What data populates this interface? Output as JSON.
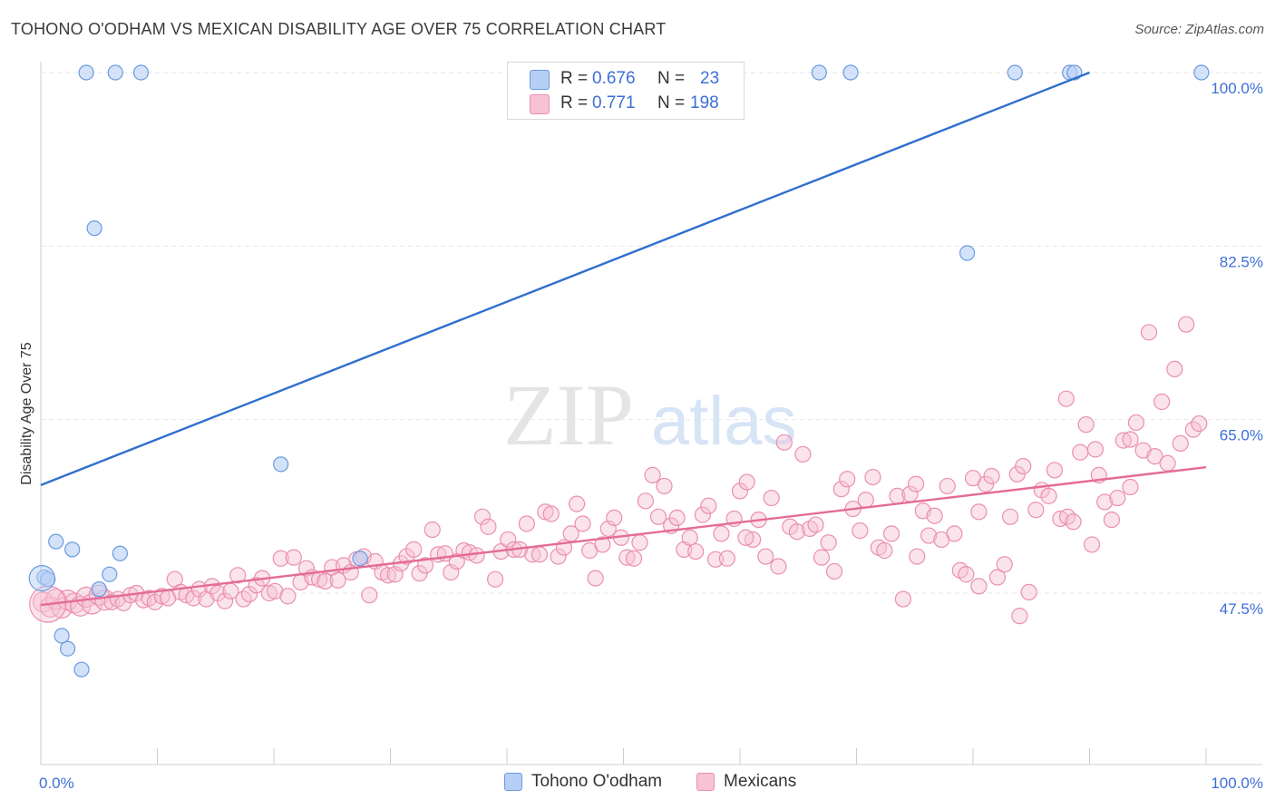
{
  "title": "TOHONO O'ODHAM VS MEXICAN DISABILITY AGE OVER 75 CORRELATION CHART",
  "source": "Source: ZipAtlas.com",
  "watermark": "ZIPatlas",
  "colors": {
    "blue_fill": "#b7cff5",
    "blue_stroke": "#6a9ae0",
    "blue_line": "#2f6fce",
    "pink_fill": "#f7c2d3",
    "pink_stroke": "#ea8fb0",
    "pink_line": "#e46b97",
    "tick_label": "#3d6fd6",
    "grid": "#e6e6e6"
  },
  "legend_top": [
    {
      "r_label": "R =",
      "r_value": "0.676",
      "n_label": "N =",
      "n_value": "23"
    },
    {
      "r_label": "R =",
      "r_value": "0.771",
      "n_label": "N =",
      "n_value": "198"
    }
  ],
  "legend_bottom": [
    "Tohono O'odham",
    "Mexicans"
  ],
  "chart_data": {
    "type": "scatter",
    "title": "TOHONO O'ODHAM VS MEXICAN DISABILITY AGE OVER 75 CORRELATION CHART",
    "xlabel": "",
    "ylabel": "Disability Age Over 75",
    "xlim": [
      0,
      100
    ],
    "ylim": [
      32.5,
      102
    ],
    "x_tick_labels": [
      "0.0%",
      "100.0%"
    ],
    "y_ticks": [
      47.5,
      65.0,
      82.5,
      100.0
    ],
    "y_tick_labels": [
      "47.5%",
      "65.0%",
      "82.5%",
      "100.0%"
    ],
    "grid": "horizontal dashed",
    "legend_placement": "top-center and bottom-center",
    "series": [
      {
        "name": "Tohono O'odham",
        "r": 0.676,
        "n": 23,
        "trend": [
          [
            0,
            58.4
          ],
          [
            90,
            100.0
          ]
        ],
        "points": [
          [
            3.9,
            100.0
          ],
          [
            6.4,
            100.0
          ],
          [
            8.6,
            100.0
          ],
          [
            66.8,
            100.0
          ],
          [
            69.5,
            100.0
          ],
          [
            83.6,
            100.0
          ],
          [
            88.3,
            100.0
          ],
          [
            88.7,
            100.0
          ],
          [
            99.6,
            100.0
          ],
          [
            4.6,
            84.3
          ],
          [
            79.5,
            81.8
          ],
          [
            20.6,
            60.5
          ],
          [
            1.3,
            52.7
          ],
          [
            2.7,
            51.9
          ],
          [
            6.8,
            51.5
          ],
          [
            27.4,
            51.0
          ],
          [
            0.3,
            49.1
          ],
          [
            0.6,
            48.9
          ],
          [
            5.9,
            49.4
          ],
          [
            5.0,
            47.9
          ],
          [
            1.8,
            43.2
          ],
          [
            2.3,
            41.9
          ],
          [
            3.5,
            39.8
          ]
        ]
      },
      {
        "name": "Mexicans",
        "r": 0.771,
        "n": 198,
        "trend": [
          [
            0,
            46.3
          ],
          [
            100,
            60.2
          ]
        ],
        "points": [
          [
            0.2,
            46.6
          ],
          [
            0.8,
            46.1
          ],
          [
            1.3,
            46.9
          ],
          [
            1.8,
            46.0
          ],
          [
            2.3,
            46.8
          ],
          [
            2.9,
            46.5
          ],
          [
            3.4,
            46.2
          ],
          [
            3.9,
            47.1
          ],
          [
            4.4,
            46.4
          ],
          [
            5.0,
            47.3
          ],
          [
            5.5,
            46.8
          ],
          [
            6.1,
            46.6
          ],
          [
            6.6,
            46.9
          ],
          [
            7.1,
            46.5
          ],
          [
            7.7,
            47.3
          ],
          [
            8.2,
            47.5
          ],
          [
            8.8,
            46.8
          ],
          [
            9.3,
            47.0
          ],
          [
            9.8,
            46.6
          ],
          [
            10.4,
            47.2
          ],
          [
            10.9,
            47.0
          ],
          [
            11.5,
            48.9
          ],
          [
            12.0,
            47.6
          ],
          [
            12.5,
            47.3
          ],
          [
            13.1,
            47.0
          ],
          [
            13.6,
            47.9
          ],
          [
            14.2,
            46.9
          ],
          [
            14.7,
            48.2
          ],
          [
            15.2,
            47.5
          ],
          [
            15.8,
            46.7
          ],
          [
            16.3,
            47.7
          ],
          [
            16.9,
            49.3
          ],
          [
            17.4,
            46.9
          ],
          [
            17.9,
            47.4
          ],
          [
            18.5,
            48.3
          ],
          [
            19.0,
            49.0
          ],
          [
            19.6,
            47.5
          ],
          [
            20.1,
            47.7
          ],
          [
            20.6,
            51.0
          ],
          [
            21.2,
            47.2
          ],
          [
            21.7,
            51.1
          ],
          [
            22.3,
            48.6
          ],
          [
            22.8,
            50.0
          ],
          [
            23.3,
            49.1
          ],
          [
            23.9,
            48.9
          ],
          [
            24.4,
            48.7
          ],
          [
            25.0,
            50.1
          ],
          [
            25.5,
            48.8
          ],
          [
            26.0,
            50.3
          ],
          [
            26.6,
            49.6
          ],
          [
            27.1,
            50.9
          ],
          [
            27.7,
            51.2
          ],
          [
            28.2,
            47.3
          ],
          [
            28.7,
            50.7
          ],
          [
            29.3,
            49.6
          ],
          [
            29.8,
            49.3
          ],
          [
            30.4,
            49.4
          ],
          [
            30.9,
            50.5
          ],
          [
            31.4,
            51.2
          ],
          [
            32.0,
            51.9
          ],
          [
            32.5,
            49.5
          ],
          [
            33.0,
            50.3
          ],
          [
            33.6,
            53.9
          ],
          [
            34.1,
            51.4
          ],
          [
            34.7,
            51.5
          ],
          [
            35.2,
            49.6
          ],
          [
            35.7,
            50.7
          ],
          [
            36.3,
            51.8
          ],
          [
            36.8,
            51.6
          ],
          [
            37.4,
            51.3
          ],
          [
            37.9,
            55.2
          ],
          [
            38.4,
            54.2
          ],
          [
            39.0,
            48.9
          ],
          [
            39.5,
            51.7
          ],
          [
            40.1,
            52.9
          ],
          [
            40.6,
            51.9
          ],
          [
            41.1,
            51.9
          ],
          [
            41.7,
            54.5
          ],
          [
            42.2,
            51.4
          ],
          [
            42.8,
            51.4
          ],
          [
            43.3,
            55.7
          ],
          [
            43.8,
            55.5
          ],
          [
            44.4,
            51.2
          ],
          [
            44.9,
            52.1
          ],
          [
            45.5,
            53.5
          ],
          [
            46.0,
            56.5
          ],
          [
            46.5,
            54.5
          ],
          [
            47.1,
            51.8
          ],
          [
            47.6,
            49.0
          ],
          [
            48.2,
            52.4
          ],
          [
            48.7,
            54.0
          ],
          [
            49.2,
            55.1
          ],
          [
            49.8,
            53.1
          ],
          [
            50.3,
            51.1
          ],
          [
            50.9,
            51.0
          ],
          [
            51.4,
            52.6
          ],
          [
            51.9,
            56.8
          ],
          [
            52.5,
            59.4
          ],
          [
            53.0,
            55.2
          ],
          [
            53.5,
            58.3
          ],
          [
            54.1,
            54.3
          ],
          [
            54.6,
            55.1
          ],
          [
            55.2,
            51.9
          ],
          [
            55.7,
            53.1
          ],
          [
            56.2,
            51.7
          ],
          [
            56.8,
            55.4
          ],
          [
            57.3,
            56.3
          ],
          [
            57.9,
            50.9
          ],
          [
            58.4,
            53.5
          ],
          [
            58.9,
            51.0
          ],
          [
            59.5,
            55.0
          ],
          [
            60.0,
            57.8
          ],
          [
            60.6,
            58.7
          ],
          [
            61.1,
            52.9
          ],
          [
            61.6,
            54.9
          ],
          [
            62.2,
            51.2
          ],
          [
            62.7,
            57.1
          ],
          [
            63.3,
            50.2
          ],
          [
            63.8,
            62.7
          ],
          [
            64.3,
            54.2
          ],
          [
            64.9,
            53.7
          ],
          [
            65.4,
            61.5
          ],
          [
            66.0,
            54.0
          ],
          [
            66.5,
            54.4
          ],
          [
            67.0,
            51.1
          ],
          [
            67.6,
            52.6
          ],
          [
            68.1,
            49.7
          ],
          [
            68.7,
            58.0
          ],
          [
            69.2,
            59.0
          ],
          [
            69.7,
            56.0
          ],
          [
            70.3,
            53.8
          ],
          [
            70.8,
            56.9
          ],
          [
            71.4,
            59.2
          ],
          [
            71.9,
            52.1
          ],
          [
            72.4,
            51.8
          ],
          [
            73.0,
            53.5
          ],
          [
            73.5,
            57.3
          ],
          [
            74.0,
            46.9
          ],
          [
            74.6,
            57.5
          ],
          [
            75.1,
            58.5
          ],
          [
            75.7,
            55.8
          ],
          [
            76.2,
            53.3
          ],
          [
            76.7,
            55.3
          ],
          [
            77.3,
            52.9
          ],
          [
            77.8,
            58.3
          ],
          [
            78.4,
            53.5
          ],
          [
            78.9,
            49.8
          ],
          [
            79.4,
            49.4
          ],
          [
            80.0,
            59.1
          ],
          [
            80.5,
            55.7
          ],
          [
            81.1,
            58.5
          ],
          [
            81.6,
            59.3
          ],
          [
            82.1,
            49.1
          ],
          [
            82.7,
            50.4
          ],
          [
            83.2,
            55.2
          ],
          [
            83.8,
            59.5
          ],
          [
            84.3,
            60.3
          ],
          [
            84.8,
            47.6
          ],
          [
            85.4,
            55.9
          ],
          [
            85.9,
            57.9
          ],
          [
            86.5,
            57.3
          ],
          [
            87.0,
            59.9
          ],
          [
            87.5,
            55.0
          ],
          [
            88.1,
            55.2
          ],
          [
            88.6,
            54.7
          ],
          [
            89.2,
            61.7
          ],
          [
            89.7,
            64.5
          ],
          [
            90.2,
            52.4
          ],
          [
            90.8,
            59.4
          ],
          [
            91.3,
            56.7
          ],
          [
            91.9,
            54.9
          ],
          [
            92.4,
            57.1
          ],
          [
            92.9,
            62.9
          ],
          [
            93.5,
            63.0
          ],
          [
            94.0,
            64.7
          ],
          [
            94.6,
            61.9
          ],
          [
            95.1,
            73.8
          ],
          [
            95.6,
            61.3
          ],
          [
            96.2,
            66.8
          ],
          [
            96.7,
            60.6
          ],
          [
            97.3,
            70.1
          ],
          [
            97.8,
            62.6
          ],
          [
            98.3,
            74.6
          ],
          [
            98.9,
            64.0
          ],
          [
            99.4,
            64.6
          ],
          [
            88.0,
            67.1
          ],
          [
            80.5,
            48.2
          ],
          [
            84.0,
            45.2
          ],
          [
            75.2,
            51.2
          ],
          [
            60.5,
            53.1
          ],
          [
            90.5,
            62.0
          ],
          [
            93.5,
            58.2
          ]
        ]
      }
    ]
  }
}
